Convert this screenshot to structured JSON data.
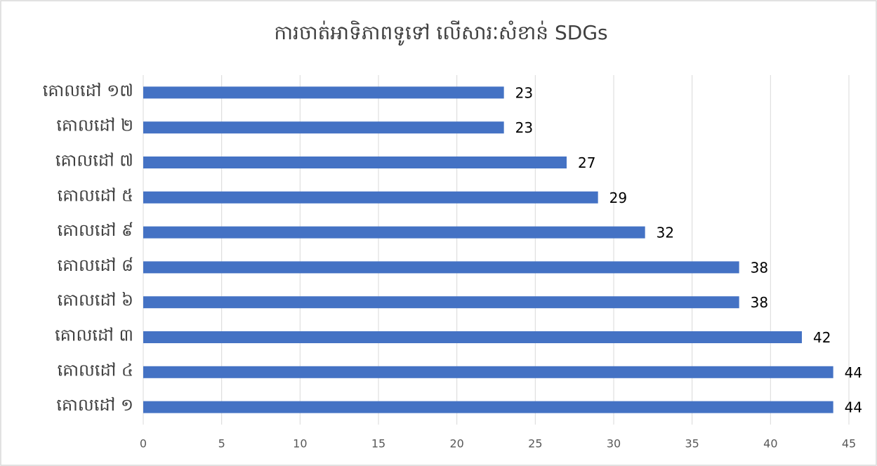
{
  "chart_data": {
    "type": "barh",
    "title": "ការចាត់អាទិភាពទូទៅ លើសារៈសំខាន់ SDGs",
    "categories": [
      "គោលដៅ ១៧",
      "គោលដៅ ២",
      "គោលដៅ ៧",
      "គោលដៅ ៥",
      "គោលដៅ ៩",
      "គោលដៅ ៨",
      "គោលដៅ ៦",
      "គោលដៅ ៣",
      "គោលដៅ ៤",
      "គោលដៅ ១"
    ],
    "values": [
      23,
      23,
      27,
      29,
      32,
      38,
      38,
      42,
      44,
      44
    ],
    "color": "#4472c4",
    "xlim": [
      0,
      45
    ],
    "xticks": [
      0,
      5,
      10,
      15,
      20,
      25,
      30,
      35,
      40,
      45
    ],
    "grid": true
  }
}
